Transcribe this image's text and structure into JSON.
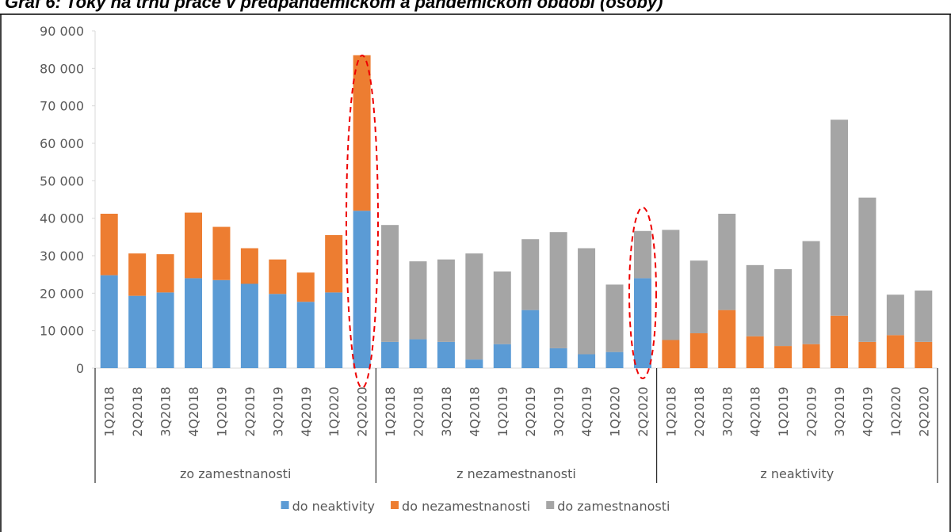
{
  "chart_data": {
    "type": "stacked_bar",
    "title": "Graf 6: Toky na trhu práce v predpandemickom a pandemickom období (osoby)",
    "category_groups": [
      {
        "name": "zo zamestnanosti",
        "categories": [
          "1Q2018",
          "2Q2018",
          "3Q2018",
          "4Q2018",
          "1Q2019",
          "2Q2019",
          "3Q2019",
          "4Q2019",
          "1Q2020",
          "2Q2020"
        ]
      },
      {
        "name": "z nezamestnanosti",
        "categories": [
          "1Q2018",
          "2Q2018",
          "3Q2018",
          "4Q2018",
          "1Q2019",
          "2Q2019",
          "3Q2019",
          "4Q2019",
          "1Q2020",
          "2Q2020"
        ]
      },
      {
        "name": "z neaktivity",
        "categories": [
          "1Q2018",
          "2Q2018",
          "3Q2018",
          "4Q2018",
          "1Q2019",
          "2Q2019",
          "3Q2019",
          "4Q2019",
          "1Q2020",
          "2Q2020"
        ]
      }
    ],
    "series": [
      {
        "name": "do neaktivity",
        "color": "#5b9bd5",
        "values": [
          24800,
          19300,
          20200,
          24000,
          23500,
          22500,
          19800,
          17700,
          20200,
          42000,
          7000,
          7700,
          7000,
          2300,
          6400,
          15500,
          5300,
          3700,
          4300,
          24000,
          null,
          null,
          null,
          null,
          null,
          null,
          null,
          null,
          null,
          null
        ]
      },
      {
        "name": "do nezamestnanosti",
        "color": "#ed7d31",
        "values": [
          16400,
          11300,
          10200,
          17500,
          14200,
          9500,
          9200,
          7800,
          15300,
          41500,
          null,
          null,
          null,
          null,
          null,
          null,
          null,
          null,
          null,
          null,
          7500,
          9300,
          15500,
          8500,
          5900,
          6400,
          14000,
          7000,
          8800,
          7000
        ]
      },
      {
        "name": "do zamestnanosti",
        "color": "#a5a5a5",
        "values": [
          null,
          null,
          null,
          null,
          null,
          null,
          null,
          null,
          null,
          null,
          31200,
          20800,
          22000,
          28300,
          19400,
          18900,
          31000,
          28300,
          18000,
          12600,
          29400,
          19400,
          25700,
          19000,
          20500,
          27500,
          52300,
          38500,
          10800,
          13700
        ]
      }
    ],
    "ylim": [
      0,
      90000
    ],
    "yticks": [
      0,
      {
        "value": 10000,
        "label": "10 000"
      },
      {
        "value": 20000,
        "label": "20 000"
      },
      {
        "value": 30000,
        "label": "30 000"
      },
      {
        "value": 40000,
        "label": "40 000"
      },
      {
        "value": 50000,
        "label": "50 000"
      },
      {
        "value": 60000,
        "label": "60 000"
      },
      {
        "value": 70000,
        "label": "70 000"
      },
      {
        "value": 80000,
        "label": "80 000"
      },
      {
        "value": 90000,
        "label": "90 000"
      }
    ],
    "legend": "bottom"
  }
}
